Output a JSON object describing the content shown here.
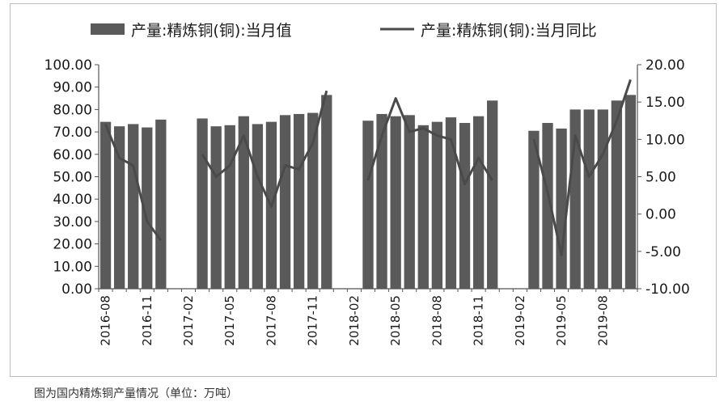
{
  "caption": "图为国内精炼铜产量情况（单位：万吨）",
  "legend": {
    "bar_label": "产量:精炼铜(铜):当月值",
    "line_label": "产量:精炼铜(铜):当月同比"
  },
  "colors": {
    "bar": "#5a5a5a",
    "line": "#4a4a4a",
    "axis": "#555555"
  },
  "chart_data": {
    "type": "bar+line",
    "categories": [
      "2016-08",
      "2016-09",
      "2016-10",
      "2016-11",
      "2016-12",
      "2017-01",
      "2017-02",
      "2017-03",
      "2017-04",
      "2017-05",
      "2017-06",
      "2017-07",
      "2017-08",
      "2017-09",
      "2017-10",
      "2017-11",
      "2017-12",
      "2018-01",
      "2018-02",
      "2018-03",
      "2018-04",
      "2018-05",
      "2018-06",
      "2018-07",
      "2018-08",
      "2018-09",
      "2018-10",
      "2018-11",
      "2018-12",
      "2019-01",
      "2019-02",
      "2019-03",
      "2019-04",
      "2019-05",
      "2019-06",
      "2019-07",
      "2019-08",
      "2019-09",
      "2019-10"
    ],
    "x_tick_labels": [
      "2016-08",
      "2016-11",
      "2017-02",
      "2017-05",
      "2017-08",
      "2017-11",
      "2018-02",
      "2018-05",
      "2018-08",
      "2018-11",
      "2019-02",
      "2019-05",
      "2019-08"
    ],
    "series": [
      {
        "name": "产量:精炼铜(铜):当月值",
        "type": "bar",
        "axis": "left",
        "values": [
          74.5,
          72.5,
          73.5,
          72.0,
          75.5,
          null,
          null,
          76.0,
          72.5,
          73.0,
          77.0,
          73.5,
          74.5,
          77.5,
          78.0,
          78.5,
          86.5,
          null,
          null,
          75.0,
          78.0,
          77.0,
          77.5,
          73.0,
          74.5,
          76.5,
          74.0,
          77.0,
          84.0,
          null,
          null,
          70.5,
          74.0,
          71.5,
          80.0,
          80.0,
          80.0,
          84.0,
          86.5
        ]
      },
      {
        "name": "产量:精炼铜(铜):当月同比",
        "type": "line",
        "axis": "right",
        "values": [
          12.0,
          7.5,
          6.5,
          -1.0,
          -3.5,
          null,
          null,
          8.0,
          5.0,
          6.5,
          10.5,
          5.0,
          1.0,
          6.5,
          6.0,
          9.5,
          16.5,
          null,
          null,
          4.5,
          10.5,
          15.5,
          11.0,
          11.5,
          10.5,
          10.0,
          4.0,
          7.5,
          4.5,
          null,
          null,
          10.0,
          3.0,
          -5.5,
          10.5,
          5.0,
          8.0,
          12.5,
          18.0
        ]
      }
    ],
    "left_axis": {
      "min": 0,
      "max": 100,
      "step": 10,
      "labels": [
        "0.00",
        "10.00",
        "20.00",
        "30.00",
        "40.00",
        "50.00",
        "60.00",
        "70.00",
        "80.00",
        "90.00",
        "100.00"
      ]
    },
    "right_axis": {
      "min": -10,
      "max": 20,
      "step": 5,
      "labels": [
        "-10.00",
        "-5.00",
        "0.00",
        "5.00",
        "10.00",
        "15.00",
        "20.00"
      ]
    },
    "grid": false,
    "legend_position": "top"
  }
}
